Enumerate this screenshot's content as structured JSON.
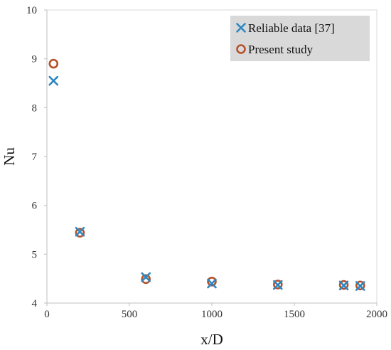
{
  "chart_data": {
    "type": "scatter",
    "xlabel": "x/D",
    "ylabel": "Nu",
    "xlim": [
      0,
      2000
    ],
    "ylim": [
      4,
      10
    ],
    "xticks": [
      0,
      500,
      1000,
      1500,
      2000
    ],
    "yticks": [
      4,
      5,
      6,
      7,
      8,
      9,
      10
    ],
    "grid": false,
    "legend": "top-right",
    "series": [
      {
        "name": "Reliable data [37]",
        "marker": "x",
        "color": "#2E86C1",
        "points": [
          {
            "x": 40,
            "y": 8.55
          },
          {
            "x": 200,
            "y": 5.46
          },
          {
            "x": 600,
            "y": 4.53
          },
          {
            "x": 1000,
            "y": 4.4
          },
          {
            "x": 1400,
            "y": 4.37
          },
          {
            "x": 1800,
            "y": 4.36
          },
          {
            "x": 1900,
            "y": 4.35
          }
        ]
      },
      {
        "name": "Present study",
        "marker": "o",
        "color": "#B5522A",
        "points": [
          {
            "x": 40,
            "y": 8.9
          },
          {
            "x": 200,
            "y": 5.44
          },
          {
            "x": 600,
            "y": 4.49
          },
          {
            "x": 1000,
            "y": 4.44
          },
          {
            "x": 1400,
            "y": 4.38
          },
          {
            "x": 1800,
            "y": 4.37
          },
          {
            "x": 1900,
            "y": 4.36
          }
        ]
      }
    ]
  }
}
